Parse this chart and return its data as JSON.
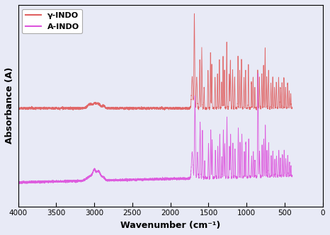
{
  "title": "",
  "xlabel": "Wavenumber (cm⁻¹)",
  "ylabel": "Absorbance (A)",
  "background_color": "#e8eaf6",
  "figure_color": "#e8eaf6",
  "xlim": [
    4000,
    0
  ],
  "red_color": "#e06060",
  "pink_color": "#dd55dd",
  "legend_labels": [
    "γ-INDO",
    "A-INDO"
  ],
  "xticks": [
    4000,
    3500,
    3000,
    2500,
    2000,
    1500,
    1000,
    500,
    0
  ],
  "red_baseline": 0.55,
  "pink_baseline": 0.12
}
